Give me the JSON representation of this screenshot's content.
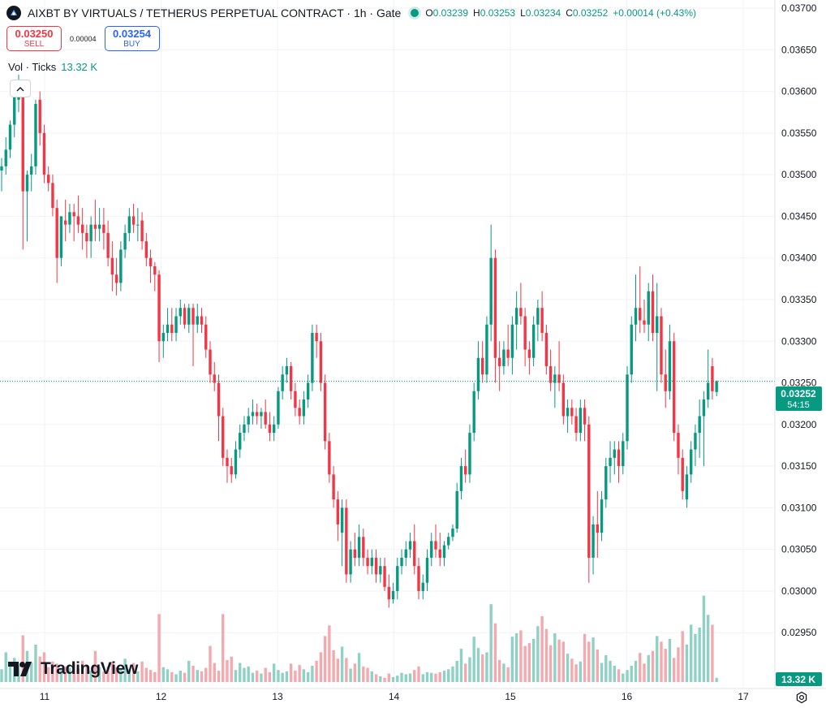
{
  "header": {
    "title": "AIXBT BY VIRTUALS / TETHERUS PERPETUAL CONTRACT · 1h · Gate",
    "ohlc": [
      {
        "label": "O",
        "value": "0.03239"
      },
      {
        "label": "H",
        "value": "0.03253"
      },
      {
        "label": "L",
        "value": "0.03234"
      },
      {
        "label": "C",
        "value": "0.03252"
      }
    ],
    "change": "+0.00014 (+0.43%)"
  },
  "trade": {
    "sell_price": "0.03250",
    "sell_label": "SELL",
    "spread": "0.00004",
    "buy_price": "0.03254",
    "buy_label": "BUY"
  },
  "volume_legend": {
    "label": "Vol · Ticks",
    "value": "13.32 K"
  },
  "watermark": "TradingView",
  "colors": {
    "up": "#089981",
    "down": "#f23645",
    "up_volume": "#8fd1c5",
    "down_volume": "#f3a9ae",
    "grid": "#f0f3fa"
  },
  "chart_data": {
    "type": "candlestick",
    "timeframe": "1h",
    "x_tick_labels": [
      "11",
      "12",
      "13",
      "14",
      "15",
      "16",
      "17"
    ],
    "y_tick_labels": [
      "0.03700",
      "0.03650",
      "0.03600",
      "0.03550",
      "0.03500",
      "0.03450",
      "0.03400",
      "0.03350",
      "0.03300",
      "0.03250",
      "0.03200",
      "0.03150",
      "0.03100",
      "0.03050",
      "0.03000",
      "0.02950"
    ],
    "ylim": [
      0.0292,
      0.037
    ],
    "last_price": "0.03252",
    "countdown": "54:15",
    "volume_last": "13.32 K",
    "volume_max": 14,
    "candles": [
      [
        0.03505,
        0.0352,
        0.0348,
        0.0351,
        1.8
      ],
      [
        0.0351,
        0.03545,
        0.035,
        0.0353,
        4.2
      ],
      [
        0.0353,
        0.03565,
        0.0352,
        0.0356,
        2.5
      ],
      [
        0.0356,
        0.0361,
        0.03545,
        0.03598,
        3.4
      ],
      [
        0.0359,
        0.0362,
        0.03575,
        0.03605,
        2.3
      ],
      [
        0.03598,
        0.03605,
        0.0341,
        0.0348,
        6.6
      ],
      [
        0.0348,
        0.03505,
        0.0342,
        0.035,
        4.4
      ],
      [
        0.035,
        0.03525,
        0.0348,
        0.0351,
        2.8
      ],
      [
        0.0351,
        0.0359,
        0.035,
        0.03585,
        5.3
      ],
      [
        0.0359,
        0.036,
        0.03535,
        0.0355,
        3.6
      ],
      [
        0.0355,
        0.0356,
        0.0349,
        0.035,
        4.2
      ],
      [
        0.035,
        0.0351,
        0.0348,
        0.0349,
        2.1
      ],
      [
        0.0349,
        0.035,
        0.0345,
        0.0346,
        2.9
      ],
      [
        0.0346,
        0.0347,
        0.0337,
        0.034,
        2.6
      ],
      [
        0.034,
        0.0345,
        0.0339,
        0.0345,
        1.9
      ],
      [
        0.03445,
        0.0347,
        0.0342,
        0.0344,
        2.2
      ],
      [
        0.0344,
        0.03465,
        0.0343,
        0.03455,
        2.0
      ],
      [
        0.03455,
        0.03465,
        0.0342,
        0.0345,
        2.7
      ],
      [
        0.0345,
        0.03475,
        0.0343,
        0.0344,
        1.9
      ],
      [
        0.0344,
        0.0346,
        0.0341,
        0.0343,
        3.0
      ],
      [
        0.0343,
        0.0344,
        0.034,
        0.0342,
        2.2
      ],
      [
        0.0342,
        0.0345,
        0.034,
        0.0344,
        1.6
      ],
      [
        0.0344,
        0.0347,
        0.0342,
        0.03435,
        4.4
      ],
      [
        0.03435,
        0.0346,
        0.0342,
        0.0344,
        2.1
      ],
      [
        0.0344,
        0.0346,
        0.0341,
        0.0343,
        1.5
      ],
      [
        0.0343,
        0.03445,
        0.0339,
        0.034,
        2.2
      ],
      [
        0.034,
        0.0342,
        0.0336,
        0.0338,
        2.8
      ],
      [
        0.0338,
        0.034,
        0.03355,
        0.0337,
        2.1
      ],
      [
        0.0337,
        0.0342,
        0.0336,
        0.0341,
        1.8
      ],
      [
        0.0341,
        0.0344,
        0.034,
        0.0343,
        3.3
      ],
      [
        0.0343,
        0.0346,
        0.0342,
        0.0345,
        1.8
      ],
      [
        0.0345,
        0.03465,
        0.0343,
        0.0344,
        2.7
      ],
      [
        0.0344,
        0.0346,
        0.0342,
        0.0344,
        1.5
      ],
      [
        0.03445,
        0.03455,
        0.0341,
        0.0342,
        2.9
      ],
      [
        0.0342,
        0.0343,
        0.0339,
        0.034,
        2.0
      ],
      [
        0.034,
        0.0341,
        0.0337,
        0.0339,
        1.7
      ],
      [
        0.0339,
        0.03395,
        0.0336,
        0.0338,
        1.4
      ],
      [
        0.0338,
        0.03385,
        0.03275,
        0.033,
        9.6
      ],
      [
        0.033,
        0.0332,
        0.0328,
        0.0331,
        2.1
      ],
      [
        0.0331,
        0.0334,
        0.033,
        0.0332,
        1.8
      ],
      [
        0.0332,
        0.0334,
        0.033,
        0.0331,
        1.4
      ],
      [
        0.0331,
        0.0334,
        0.033,
        0.0333,
        1.1
      ],
      [
        0.0333,
        0.0335,
        0.0332,
        0.0334,
        1.6
      ],
      [
        0.0334,
        0.03345,
        0.03315,
        0.0332,
        1.3
      ],
      [
        0.0332,
        0.03345,
        0.0331,
        0.0334,
        3.0
      ],
      [
        0.0334,
        0.03345,
        0.0327,
        0.0332,
        2.3
      ],
      [
        0.0332,
        0.03345,
        0.0331,
        0.0333,
        1.7
      ],
      [
        0.0333,
        0.0334,
        0.0331,
        0.0332,
        1.5
      ],
      [
        0.0332,
        0.0333,
        0.0328,
        0.0329,
        2.0
      ],
      [
        0.0329,
        0.033,
        0.0325,
        0.0326,
        5.1
      ],
      [
        0.0326,
        0.03275,
        0.0324,
        0.0325,
        2.7
      ],
      [
        0.0325,
        0.0326,
        0.0318,
        0.0321,
        1.6
      ],
      [
        0.0321,
        0.0322,
        0.0315,
        0.0316,
        9.6
      ],
      [
        0.0316,
        0.0317,
        0.0313,
        0.0315,
        3.1
      ],
      [
        0.0315,
        0.0316,
        0.0313,
        0.0314,
        3.6
      ],
      [
        0.0314,
        0.0318,
        0.03135,
        0.0317,
        1.7
      ],
      [
        0.0317,
        0.032,
        0.0316,
        0.0319,
        2.7
      ],
      [
        0.0319,
        0.0321,
        0.0318,
        0.032,
        2.0
      ],
      [
        0.032,
        0.0322,
        0.0319,
        0.0321,
        2.2
      ],
      [
        0.0321,
        0.0323,
        0.032,
        0.03215,
        1.3
      ],
      [
        0.03215,
        0.03225,
        0.032,
        0.0321,
        1.6
      ],
      [
        0.0321,
        0.0322,
        0.03195,
        0.03215,
        1.2
      ],
      [
        0.03215,
        0.0323,
        0.03195,
        0.032,
        2.0
      ],
      [
        0.032,
        0.03215,
        0.0318,
        0.0319,
        1.4
      ],
      [
        0.0319,
        0.0321,
        0.0318,
        0.032,
        2.6
      ],
      [
        0.032,
        0.03245,
        0.03195,
        0.0324,
        1.7
      ],
      [
        0.0324,
        0.0327,
        0.0323,
        0.0326,
        1.3
      ],
      [
        0.0326,
        0.0328,
        0.0325,
        0.0327,
        1.5
      ],
      [
        0.0327,
        0.03275,
        0.0323,
        0.0324,
        2.6
      ],
      [
        0.0324,
        0.0325,
        0.0321,
        0.0322,
        1.6
      ],
      [
        0.0322,
        0.0323,
        0.032,
        0.0321,
        2.4
      ],
      [
        0.0321,
        0.0324,
        0.032,
        0.0323,
        1.8
      ],
      [
        0.0323,
        0.0326,
        0.0322,
        0.0325,
        1.4
      ],
      [
        0.0325,
        0.0332,
        0.0324,
        0.0331,
        2.3
      ],
      [
        0.0331,
        0.0332,
        0.0328,
        0.033,
        3.0
      ],
      [
        0.033,
        0.0331,
        0.0324,
        0.0325,
        4.2
      ],
      [
        0.0325,
        0.0326,
        0.0317,
        0.0318,
        6.5
      ],
      [
        0.0318,
        0.0319,
        0.0313,
        0.0314,
        8.0
      ],
      [
        0.0314,
        0.0315,
        0.031,
        0.0311,
        4.5
      ],
      [
        0.0311,
        0.0312,
        0.0306,
        0.0308,
        3.3
      ],
      [
        0.0307,
        0.0311,
        0.0303,
        0.031,
        5.0
      ],
      [
        0.031,
        0.0311,
        0.0301,
        0.0302,
        3.4
      ],
      [
        0.0302,
        0.0306,
        0.0301,
        0.0305,
        1.9
      ],
      [
        0.0305,
        0.0307,
        0.0303,
        0.0304,
        2.6
      ],
      [
        0.0304,
        0.0308,
        0.0303,
        0.03065,
        4.1
      ],
      [
        0.03065,
        0.03075,
        0.0303,
        0.0304,
        2.2
      ],
      [
        0.0304,
        0.0305,
        0.0302,
        0.0303,
        2.0
      ],
      [
        0.0303,
        0.0305,
        0.0302,
        0.0304,
        1.5
      ],
      [
        0.0304,
        0.0305,
        0.0301,
        0.0302,
        1.1
      ],
      [
        0.0302,
        0.0304,
        0.0301,
        0.0303,
        0.8
      ],
      [
        0.0303,
        0.0304,
        0.03,
        0.03005,
        0.6
      ],
      [
        0.03005,
        0.0302,
        0.0298,
        0.0299,
        1.2
      ],
      [
        0.0299,
        0.0301,
        0.02985,
        0.03,
        0.7
      ],
      [
        0.03,
        0.0304,
        0.0299,
        0.0303,
        0.9
      ],
      [
        0.0303,
        0.0305,
        0.0302,
        0.0304,
        1.3
      ],
      [
        0.0304,
        0.0306,
        0.0303,
        0.0305,
        1.1
      ],
      [
        0.0305,
        0.0307,
        0.0304,
        0.0306,
        1.2
      ],
      [
        0.0306,
        0.0308,
        0.0302,
        0.0303,
        1.7
      ],
      [
        0.0303,
        0.0304,
        0.0299,
        0.03,
        2.2
      ],
      [
        0.03,
        0.0302,
        0.0299,
        0.0301,
        1.1
      ],
      [
        0.0301,
        0.0305,
        0.03,
        0.0304,
        1.4
      ],
      [
        0.0304,
        0.0307,
        0.0303,
        0.0306,
        1.3
      ],
      [
        0.0306,
        0.0308,
        0.0304,
        0.0305,
        1.2
      ],
      [
        0.0305,
        0.0307,
        0.0303,
        0.0304,
        1.4
      ],
      [
        0.0304,
        0.0306,
        0.0303,
        0.03055,
        1.6
      ],
      [
        0.03055,
        0.0307,
        0.0305,
        0.03065,
        1.8
      ],
      [
        0.03065,
        0.0308,
        0.0306,
        0.03075,
        2.2
      ],
      [
        0.03075,
        0.0313,
        0.0307,
        0.0312,
        3.0
      ],
      [
        0.0312,
        0.0316,
        0.0311,
        0.0315,
        4.7
      ],
      [
        0.0315,
        0.0317,
        0.0313,
        0.0314,
        2.6
      ],
      [
        0.0314,
        0.032,
        0.0313,
        0.0319,
        3.5
      ],
      [
        0.0319,
        0.0325,
        0.0318,
        0.0324,
        6.4
      ],
      [
        0.0324,
        0.033,
        0.0323,
        0.0328,
        4.8
      ],
      [
        0.0328,
        0.033,
        0.0325,
        0.0326,
        3.9
      ],
      [
        0.0326,
        0.0333,
        0.0325,
        0.0332,
        4.2
      ],
      [
        0.0332,
        0.0344,
        0.033,
        0.034,
        11.0
      ],
      [
        0.034,
        0.0341,
        0.0325,
        0.0328,
        8.3
      ],
      [
        0.0328,
        0.033,
        0.0324,
        0.0327,
        3.1
      ],
      [
        0.0327,
        0.033,
        0.0326,
        0.0329,
        2.6
      ],
      [
        0.0329,
        0.0332,
        0.0327,
        0.0328,
        2.1
      ],
      [
        0.0328,
        0.0333,
        0.0326,
        0.0332,
        6.4
      ],
      [
        0.0332,
        0.0336,
        0.0329,
        0.0334,
        6.9
      ],
      [
        0.0334,
        0.0337,
        0.0332,
        0.0333,
        7.3
      ],
      [
        0.0333,
        0.0334,
        0.0327,
        0.0329,
        5.1
      ],
      [
        0.0329,
        0.033,
        0.0326,
        0.0328,
        5.5
      ],
      [
        0.0328,
        0.0333,
        0.0327,
        0.0332,
        6.1
      ],
      [
        0.0332,
        0.0335,
        0.033,
        0.0334,
        7.9
      ],
      [
        0.0334,
        0.0336,
        0.033,
        0.0331,
        9.3
      ],
      [
        0.0331,
        0.0332,
        0.0326,
        0.0327,
        7.5
      ],
      [
        0.0327,
        0.0329,
        0.0324,
        0.0325,
        5.2
      ],
      [
        0.0325,
        0.0327,
        0.0322,
        0.0326,
        6.9
      ],
      [
        0.0326,
        0.033,
        0.0324,
        0.0325,
        6.0
      ],
      [
        0.0325,
        0.0326,
        0.032,
        0.0321,
        5.7
      ],
      [
        0.0321,
        0.0323,
        0.0319,
        0.0322,
        4.0
      ],
      [
        0.0322,
        0.0323,
        0.032,
        0.0321,
        3.3
      ],
      [
        0.0321,
        0.0322,
        0.0318,
        0.0319,
        2.5
      ],
      [
        0.0319,
        0.0323,
        0.0318,
        0.0322,
        2.9
      ],
      [
        0.0322,
        0.0323,
        0.0318,
        0.032,
        6.8
      ],
      [
        0.032,
        0.0321,
        0.0301,
        0.0304,
        5.7
      ],
      [
        0.0304,
        0.0309,
        0.0302,
        0.0308,
        6.3
      ],
      [
        0.0308,
        0.0312,
        0.0304,
        0.0307,
        4.6
      ],
      [
        0.0307,
        0.0312,
        0.0306,
        0.0311,
        2.7
      ],
      [
        0.0311,
        0.0316,
        0.031,
        0.0315,
        3.8
      ],
      [
        0.0315,
        0.0318,
        0.0313,
        0.0316,
        3.0
      ],
      [
        0.0316,
        0.0318,
        0.0314,
        0.0317,
        2.3
      ],
      [
        0.0317,
        0.0318,
        0.0313,
        0.0315,
        1.8
      ],
      [
        0.0315,
        0.0319,
        0.0314,
        0.0318,
        1.2
      ],
      [
        0.0318,
        0.0327,
        0.0317,
        0.0326,
        1.7
      ],
      [
        0.0326,
        0.0333,
        0.0325,
        0.0332,
        2.3
      ],
      [
        0.0332,
        0.0338,
        0.033,
        0.0334,
        3.0
      ],
      [
        0.0334,
        0.0339,
        0.0331,
        0.03325,
        4.1
      ],
      [
        0.03325,
        0.0335,
        0.0331,
        0.0332,
        2.6
      ],
      [
        0.0332,
        0.0337,
        0.033,
        0.0336,
        3.8
      ],
      [
        0.0336,
        0.0338,
        0.033,
        0.0331,
        4.4
      ],
      [
        0.0331,
        0.0337,
        0.0324,
        0.0333,
        6.5
      ],
      [
        0.0333,
        0.0334,
        0.0325,
        0.0326,
        5.7
      ],
      [
        0.0326,
        0.0329,
        0.0322,
        0.0324,
        4.7
      ],
      [
        0.0324,
        0.0332,
        0.0323,
        0.033,
        6.1
      ],
      [
        0.033,
        0.0331,
        0.0318,
        0.0319,
        3.4
      ],
      [
        0.0319,
        0.032,
        0.0314,
        0.0316,
        4.9
      ],
      [
        0.0316,
        0.0317,
        0.0311,
        0.0312,
        7.2
      ],
      [
        0.0311,
        0.0315,
        0.031,
        0.0314,
        5.3
      ],
      [
        0.0314,
        0.0318,
        0.0313,
        0.0317,
        8.1
      ],
      [
        0.0317,
        0.032,
        0.0315,
        0.0319,
        6.8
      ],
      [
        0.0319,
        0.0323,
        0.0316,
        0.0321,
        7.7
      ],
      [
        0.0321,
        0.0324,
        0.0315,
        0.0323,
        12.2
      ],
      [
        0.0323,
        0.0329,
        0.0322,
        0.0325,
        9.5
      ],
      [
        0.0327,
        0.0328,
        0.0323,
        0.0324,
        8.1
      ],
      [
        0.03239,
        0.03253,
        0.03234,
        0.03252,
        0.6
      ]
    ]
  }
}
